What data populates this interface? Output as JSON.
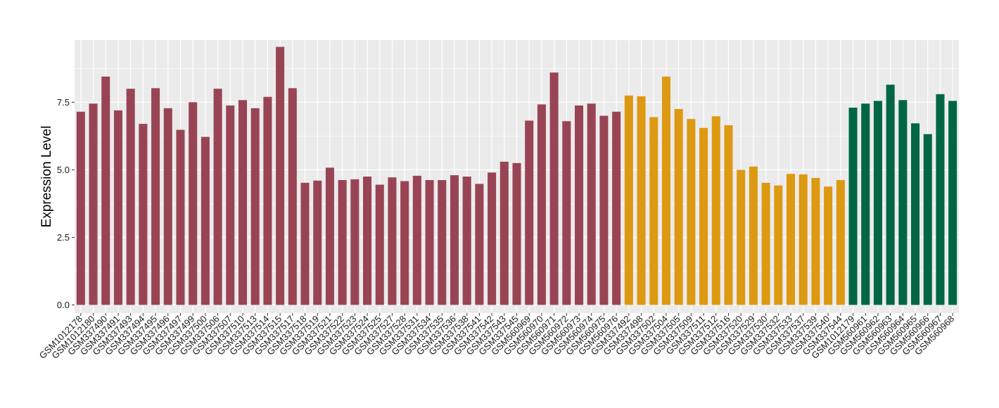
{
  "chart_data": {
    "type": "bar",
    "title": "",
    "xlabel": "",
    "ylabel": "Expression Level",
    "ylim": [
      -0.3,
      9.8
    ],
    "yticks": [
      0.0,
      2.5,
      5.0,
      7.5
    ],
    "ytick_labels": [
      "0.0",
      "2.5",
      "5.0",
      "7.5"
    ],
    "grid": true,
    "legend": "none",
    "colors": {
      "group1": "#994455",
      "group2": "#DD9911",
      "group3": "#006644",
      "panel": "#EBEBEB",
      "grid": "#FFFFFF"
    },
    "categories": [
      "GSM1012178",
      "GSM1012180",
      "GSM337490",
      "GSM337491",
      "GSM337493",
      "GSM337494",
      "GSM337495",
      "GSM337496",
      "GSM337497",
      "GSM337499",
      "GSM337500",
      "GSM337506",
      "GSM337507",
      "GSM337510",
      "GSM337513",
      "GSM337514",
      "GSM337515",
      "GSM337517",
      "GSM337518",
      "GSM337519",
      "GSM337521",
      "GSM337522",
      "GSM337523",
      "GSM337524",
      "GSM337525",
      "GSM337527",
      "GSM337528",
      "GSM337531",
      "GSM337534",
      "GSM337535",
      "GSM337536",
      "GSM337538",
      "GSM337541",
      "GSM337542",
      "GSM337543",
      "GSM337545",
      "GSM560969",
      "GSM560970",
      "GSM560971",
      "GSM560972",
      "GSM560973",
      "GSM560974",
      "GSM560975",
      "GSM560976",
      "GSM337492",
      "GSM337498",
      "GSM337502",
      "GSM337504",
      "GSM337505",
      "GSM337509",
      "GSM337511",
      "GSM337512",
      "GSM337516",
      "GSM337520",
      "GSM337529",
      "GSM337530",
      "GSM337532",
      "GSM337533",
      "GSM337537",
      "GSM337539",
      "GSM337540",
      "GSM337544",
      "GSM1012179",
      "GSM560961",
      "GSM560962",
      "GSM560963",
      "GSM560964",
      "GSM560965",
      "GSM560966",
      "GSM560967",
      "GSM560968"
    ],
    "values": [
      7.15,
      7.45,
      8.45,
      7.2,
      8.0,
      6.7,
      8.02,
      7.28,
      6.48,
      7.5,
      6.22,
      8.0,
      7.38,
      7.58,
      7.28,
      7.7,
      9.55,
      8.02,
      4.52,
      4.6,
      5.08,
      4.62,
      4.65,
      4.75,
      4.45,
      4.72,
      4.58,
      4.78,
      4.62,
      4.62,
      4.8,
      4.75,
      4.48,
      4.9,
      5.3,
      5.25,
      6.82,
      7.42,
      8.6,
      6.8,
      7.38,
      7.45,
      7.0,
      7.15,
      7.75,
      7.72,
      6.95,
      8.45,
      7.25,
      6.88,
      6.55,
      6.98,
      6.65,
      5.0,
      5.12,
      4.52,
      4.42,
      4.85,
      4.83,
      4.7,
      4.38,
      4.62,
      7.3,
      7.45,
      7.55,
      8.15,
      7.58,
      6.72,
      6.32,
      7.8,
      7.55
    ],
    "groups": [
      1,
      1,
      1,
      1,
      1,
      1,
      1,
      1,
      1,
      1,
      1,
      1,
      1,
      1,
      1,
      1,
      1,
      1,
      1,
      1,
      1,
      1,
      1,
      1,
      1,
      1,
      1,
      1,
      1,
      1,
      1,
      1,
      1,
      1,
      1,
      1,
      1,
      1,
      1,
      1,
      1,
      1,
      1,
      1,
      2,
      2,
      2,
      2,
      2,
      2,
      2,
      2,
      2,
      2,
      2,
      2,
      2,
      2,
      2,
      2,
      2,
      2,
      3,
      3,
      3,
      3,
      3,
      3,
      3,
      3,
      3
    ]
  }
}
